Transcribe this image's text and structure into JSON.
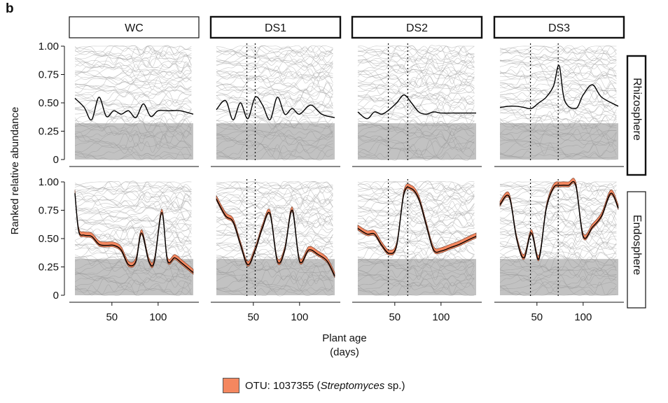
{
  "panel_letter": "b",
  "chart_data": {
    "type": "line",
    "ylabel": "Ranked relative abundance",
    "xlabel": "Plant age",
    "xlabel_unit": "(days)",
    "columns": [
      "WC",
      "DS1",
      "DS2",
      "DS3"
    ],
    "rows": [
      "Rhizosphere",
      "Endosphere"
    ],
    "y_ticks": [
      "0",
      "0.25",
      "0.50",
      "0.75",
      "1.00"
    ],
    "x_ticks": [
      "50",
      "100"
    ],
    "x_range": [
      10,
      138
    ],
    "ylim": [
      0,
      1
    ],
    "drought_start_days": {
      "DS1": 43,
      "DS2": 43,
      "DS3": 43
    },
    "drought_end_days": {
      "DS1": 52,
      "DS2": 64,
      "DS3": 73
    },
    "highlight": {
      "legend_prefix": "OTU: 1037355 (",
      "legend_italic": "Streptomyces",
      "legend_suffix": " sp.)",
      "color": "#F4875F"
    },
    "series_color": "#000000",
    "background_lines_color": "#9a9a9a",
    "series": {
      "Rhizosphere": {
        "WC": {
          "x": [
            10,
            20,
            28,
            36,
            44,
            52,
            60,
            68,
            76,
            84,
            92,
            100,
            112,
            124,
            138
          ],
          "y": [
            0.54,
            0.46,
            0.35,
            0.55,
            0.38,
            0.43,
            0.4,
            0.43,
            0.37,
            0.49,
            0.38,
            0.43,
            0.43,
            0.43,
            0.4
          ]
        },
        "DS1": {
          "x": [
            10,
            20,
            28,
            36,
            44,
            52,
            60,
            68,
            76,
            84,
            92,
            100,
            112,
            124,
            138
          ],
          "y": [
            0.44,
            0.52,
            0.35,
            0.5,
            0.36,
            0.55,
            0.48,
            0.35,
            0.55,
            0.4,
            0.45,
            0.4,
            0.48,
            0.4,
            0.37
          ]
        },
        "DS2": {
          "x": [
            10,
            20,
            28,
            36,
            44,
            52,
            60,
            68,
            76,
            84,
            92,
            100,
            112,
            124,
            138
          ],
          "y": [
            0.42,
            0.36,
            0.42,
            0.4,
            0.44,
            0.5,
            0.57,
            0.5,
            0.42,
            0.4,
            0.42,
            0.41,
            0.41,
            0.41,
            0.41
          ]
        },
        "DS3": {
          "x": [
            10,
            20,
            28,
            36,
            44,
            52,
            60,
            68,
            74,
            80,
            92,
            100,
            110,
            120,
            138
          ],
          "y": [
            0.46,
            0.47,
            0.47,
            0.46,
            0.45,
            0.5,
            0.55,
            0.65,
            0.83,
            0.52,
            0.45,
            0.57,
            0.66,
            0.55,
            0.47
          ]
        }
      },
      "Endosphere": {
        "WC": {
          "x": [
            10,
            14,
            20,
            28,
            36,
            44,
            52,
            60,
            68,
            76,
            82,
            90,
            96,
            104,
            110,
            118,
            126,
            138
          ],
          "y": [
            0.9,
            0.57,
            0.53,
            0.52,
            0.45,
            0.44,
            0.44,
            0.4,
            0.27,
            0.3,
            0.55,
            0.3,
            0.3,
            0.73,
            0.31,
            0.33,
            0.28,
            0.2
          ]
        },
        "DS1": {
          "x": [
            10,
            20,
            28,
            36,
            44,
            52,
            60,
            68,
            76,
            84,
            92,
            100,
            110,
            120,
            130,
            138
          ],
          "y": [
            0.85,
            0.7,
            0.65,
            0.45,
            0.27,
            0.4,
            0.6,
            0.72,
            0.3,
            0.4,
            0.75,
            0.3,
            0.4,
            0.36,
            0.3,
            0.17
          ]
        },
        "DS2": {
          "x": [
            10,
            20,
            28,
            36,
            44,
            52,
            60,
            68,
            76,
            84,
            92,
            100,
            110,
            120,
            130,
            138
          ],
          "y": [
            0.59,
            0.54,
            0.54,
            0.44,
            0.37,
            0.44,
            0.9,
            0.94,
            0.85,
            0.62,
            0.4,
            0.39,
            0.42,
            0.45,
            0.49,
            0.52
          ]
        },
        "DS3": {
          "x": [
            10,
            20,
            28,
            36,
            44,
            52,
            60,
            68,
            76,
            84,
            92,
            100,
            110,
            120,
            130,
            138
          ],
          "y": [
            0.8,
            0.87,
            0.5,
            0.33,
            0.55,
            0.32,
            0.76,
            0.95,
            0.97,
            0.97,
            0.97,
            0.52,
            0.6,
            0.7,
            0.9,
            0.77
          ]
        }
      }
    }
  }
}
